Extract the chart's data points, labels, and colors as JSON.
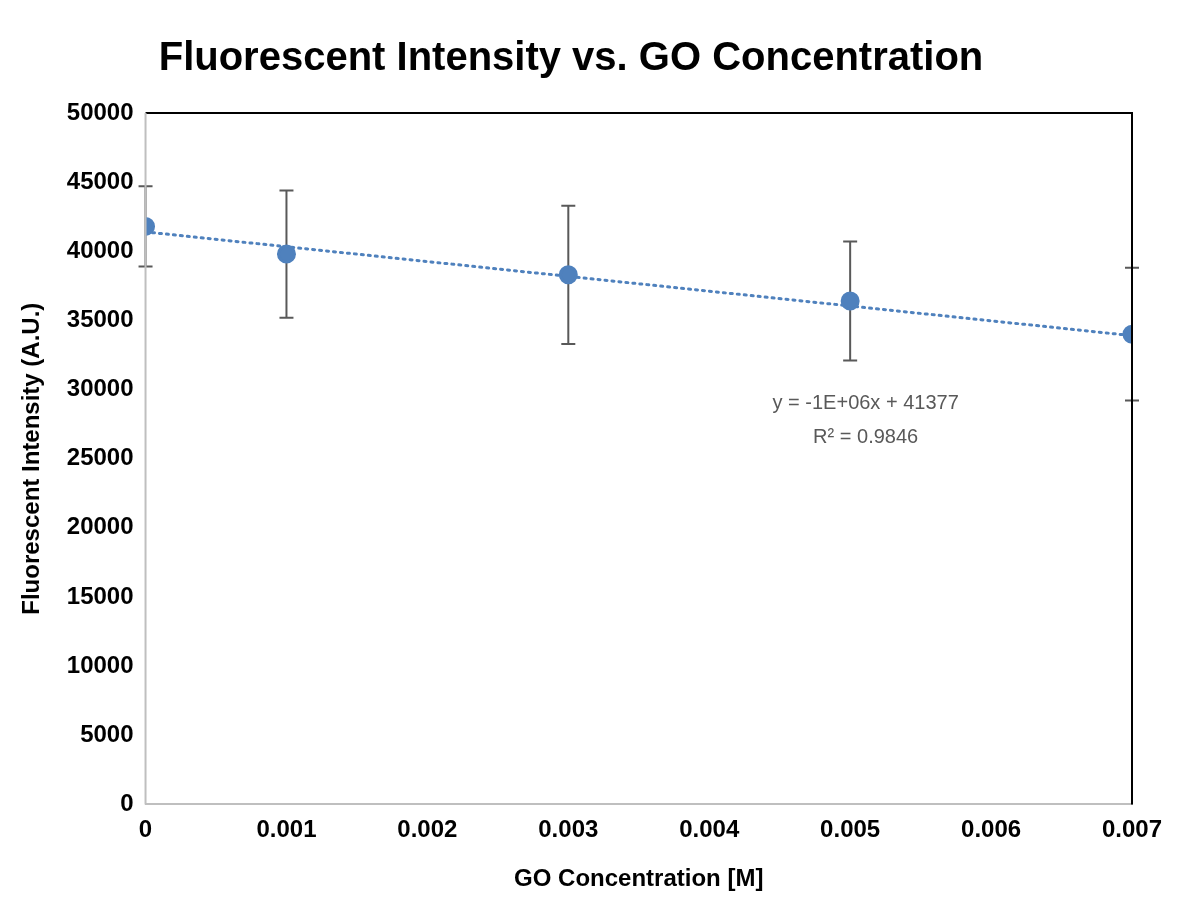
{
  "chart_data": {
    "type": "scatter",
    "title": "Fluorescent Intensity vs. GO Concentration",
    "xlabel": "GO Concentration [M]",
    "ylabel": "Fluorescent Intensity (A.U.)",
    "xlim": [
      0,
      0.007
    ],
    "xticks": [
      0,
      0.001,
      0.002,
      0.003,
      0.004,
      0.005,
      0.006,
      0.007
    ],
    "ylim": [
      0,
      50000
    ],
    "yticks": [
      0,
      5000,
      10000,
      15000,
      20000,
      25000,
      30000,
      35000,
      40000,
      45000,
      50000
    ],
    "grid": false,
    "legend": false,
    "marker": "circle",
    "series": [
      {
        "type": "scatter",
        "color": "#4f81bd",
        "x": [
          0,
          0.001,
          0.003,
          0.005,
          0.007
        ],
        "values": [
          41800,
          39800,
          38300,
          36400,
          34000
        ],
        "errors": [
          2900,
          4600,
          5000,
          4300,
          4800
        ]
      },
      {
        "type": "line",
        "color": "#4f81bd",
        "line_style": "dotted",
        "marker": "none",
        "x": [
          0,
          0.007
        ],
        "values": [
          41400,
          33900
        ]
      }
    ],
    "annotations": [
      "y = -1E+06x + 41377",
      "R² = 0.9846"
    ]
  }
}
